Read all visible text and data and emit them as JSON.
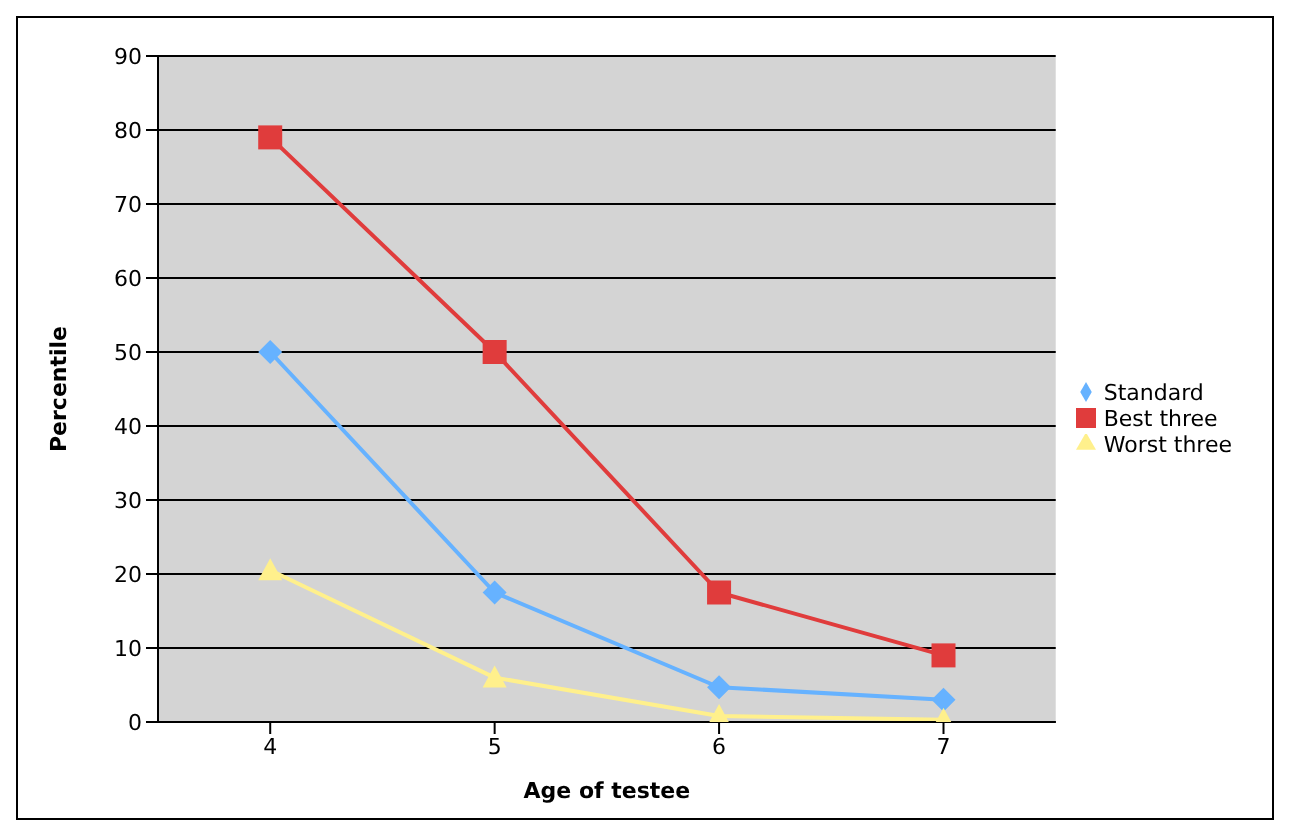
{
  "chart_data": {
    "type": "line",
    "xlabel": "Age of testee",
    "ylabel": "Percentile",
    "categories": [
      "4",
      "5",
      "6",
      "7"
    ],
    "series": [
      {
        "name": "Standard",
        "color": "#66b2ff",
        "marker": "diamond",
        "values": [
          50,
          17.5,
          4.7,
          3
        ]
      },
      {
        "name": "Best three",
        "color": "#e03c3c",
        "marker": "square",
        "values": [
          79,
          50,
          17.5,
          9
        ]
      },
      {
        "name": "Worst three",
        "color": "#fff08c",
        "marker": "triangle",
        "values": [
          20.5,
          6,
          0.8,
          0.3
        ]
      }
    ],
    "ylim": [
      0,
      90
    ],
    "yticks": [
      0,
      10,
      20,
      30,
      40,
      50,
      60,
      70,
      80,
      90
    ],
    "grid": "y",
    "legend": "right",
    "line_style": "solid"
  }
}
